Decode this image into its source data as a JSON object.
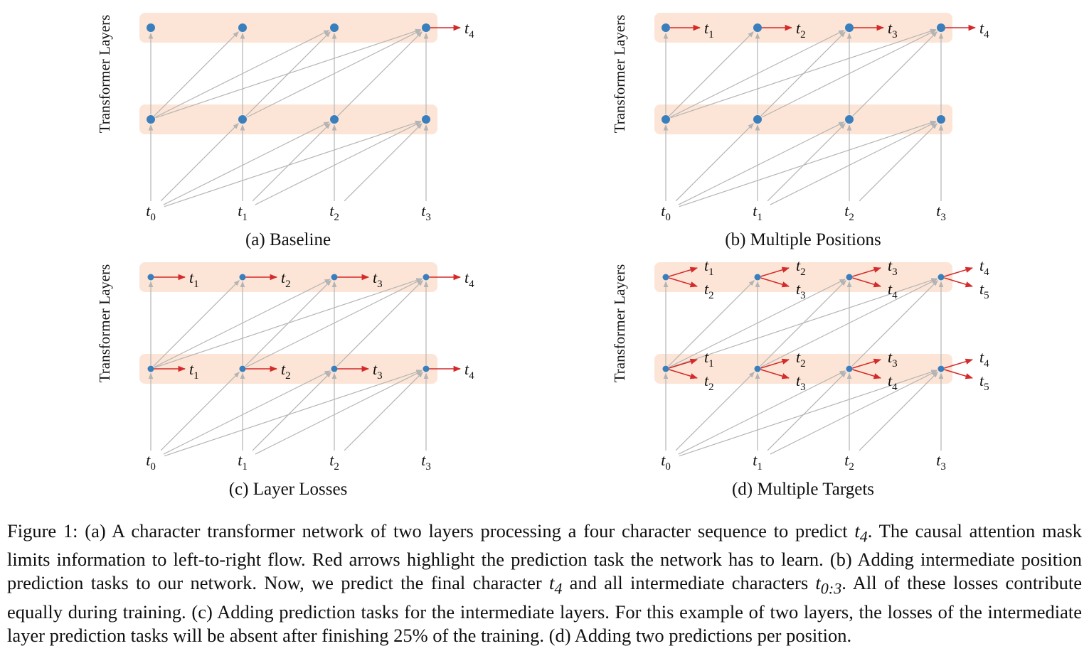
{
  "figure": {
    "y_axis_label": "Transformer Layers",
    "token_base": "t",
    "input_tokens": [
      "0",
      "1",
      "2",
      "3"
    ],
    "colors": {
      "band": "#fce5d6",
      "node": "#3a7fbd",
      "attention_edge": "#b4b4b4",
      "prediction_edge": "#d42a2a"
    },
    "panels": [
      {
        "id": "a",
        "label": "(a) Baseline",
        "node_style": "large",
        "predictions": {
          "top": [
            [],
            [],
            [],
            [
              "4"
            ]
          ],
          "bottom": [
            [],
            [],
            [],
            []
          ]
        }
      },
      {
        "id": "b",
        "label": "(b) Multiple Positions",
        "node_style": "large",
        "predictions": {
          "top": [
            [
              "1"
            ],
            [
              "2"
            ],
            [
              "3"
            ],
            [
              "4"
            ]
          ],
          "bottom": [
            [],
            [],
            [],
            []
          ]
        }
      },
      {
        "id": "c",
        "label": "(c) Layer Losses",
        "node_style": "small",
        "predictions": {
          "top": [
            [
              "1"
            ],
            [
              "2"
            ],
            [
              "3"
            ],
            [
              "4"
            ]
          ],
          "bottom": [
            [
              "1"
            ],
            [
              "2"
            ],
            [
              "3"
            ],
            [
              "4"
            ]
          ]
        }
      },
      {
        "id": "d",
        "label": "(d) Multiple Targets",
        "node_style": "small",
        "predictions": {
          "top": [
            [
              "1",
              "2"
            ],
            [
              "2",
              "3"
            ],
            [
              "3",
              "4"
            ],
            [
              "4",
              "5"
            ]
          ],
          "bottom": [
            [
              "1",
              "2"
            ],
            [
              "2",
              "3"
            ],
            [
              "3",
              "4"
            ],
            [
              "4",
              "5"
            ]
          ]
        }
      }
    ]
  },
  "caption": {
    "p1": "Figure 1: (a) A character transformer network of two layers processing a four character sequence to predict ",
    "m1": "t",
    "m1_sub": "4",
    "p2": ". The causal attention mask limits information to left-to-right flow. Red arrows highlight the prediction task the network has to learn. (b) Adding intermediate position prediction tasks to our network. Now, we predict the final character ",
    "m2": "t",
    "m2_sub": "4",
    "p3": " and all intermediate characters ",
    "m3": "t",
    "m3_sub": "0:3",
    "p4": ". All of these losses contribute equally during training. (c) Adding prediction tasks for the intermediate layers. For this example of two layers, the losses of the intermediate layer prediction tasks will be absent after finishing 25% of the training. (d) Adding two predictions per position."
  }
}
